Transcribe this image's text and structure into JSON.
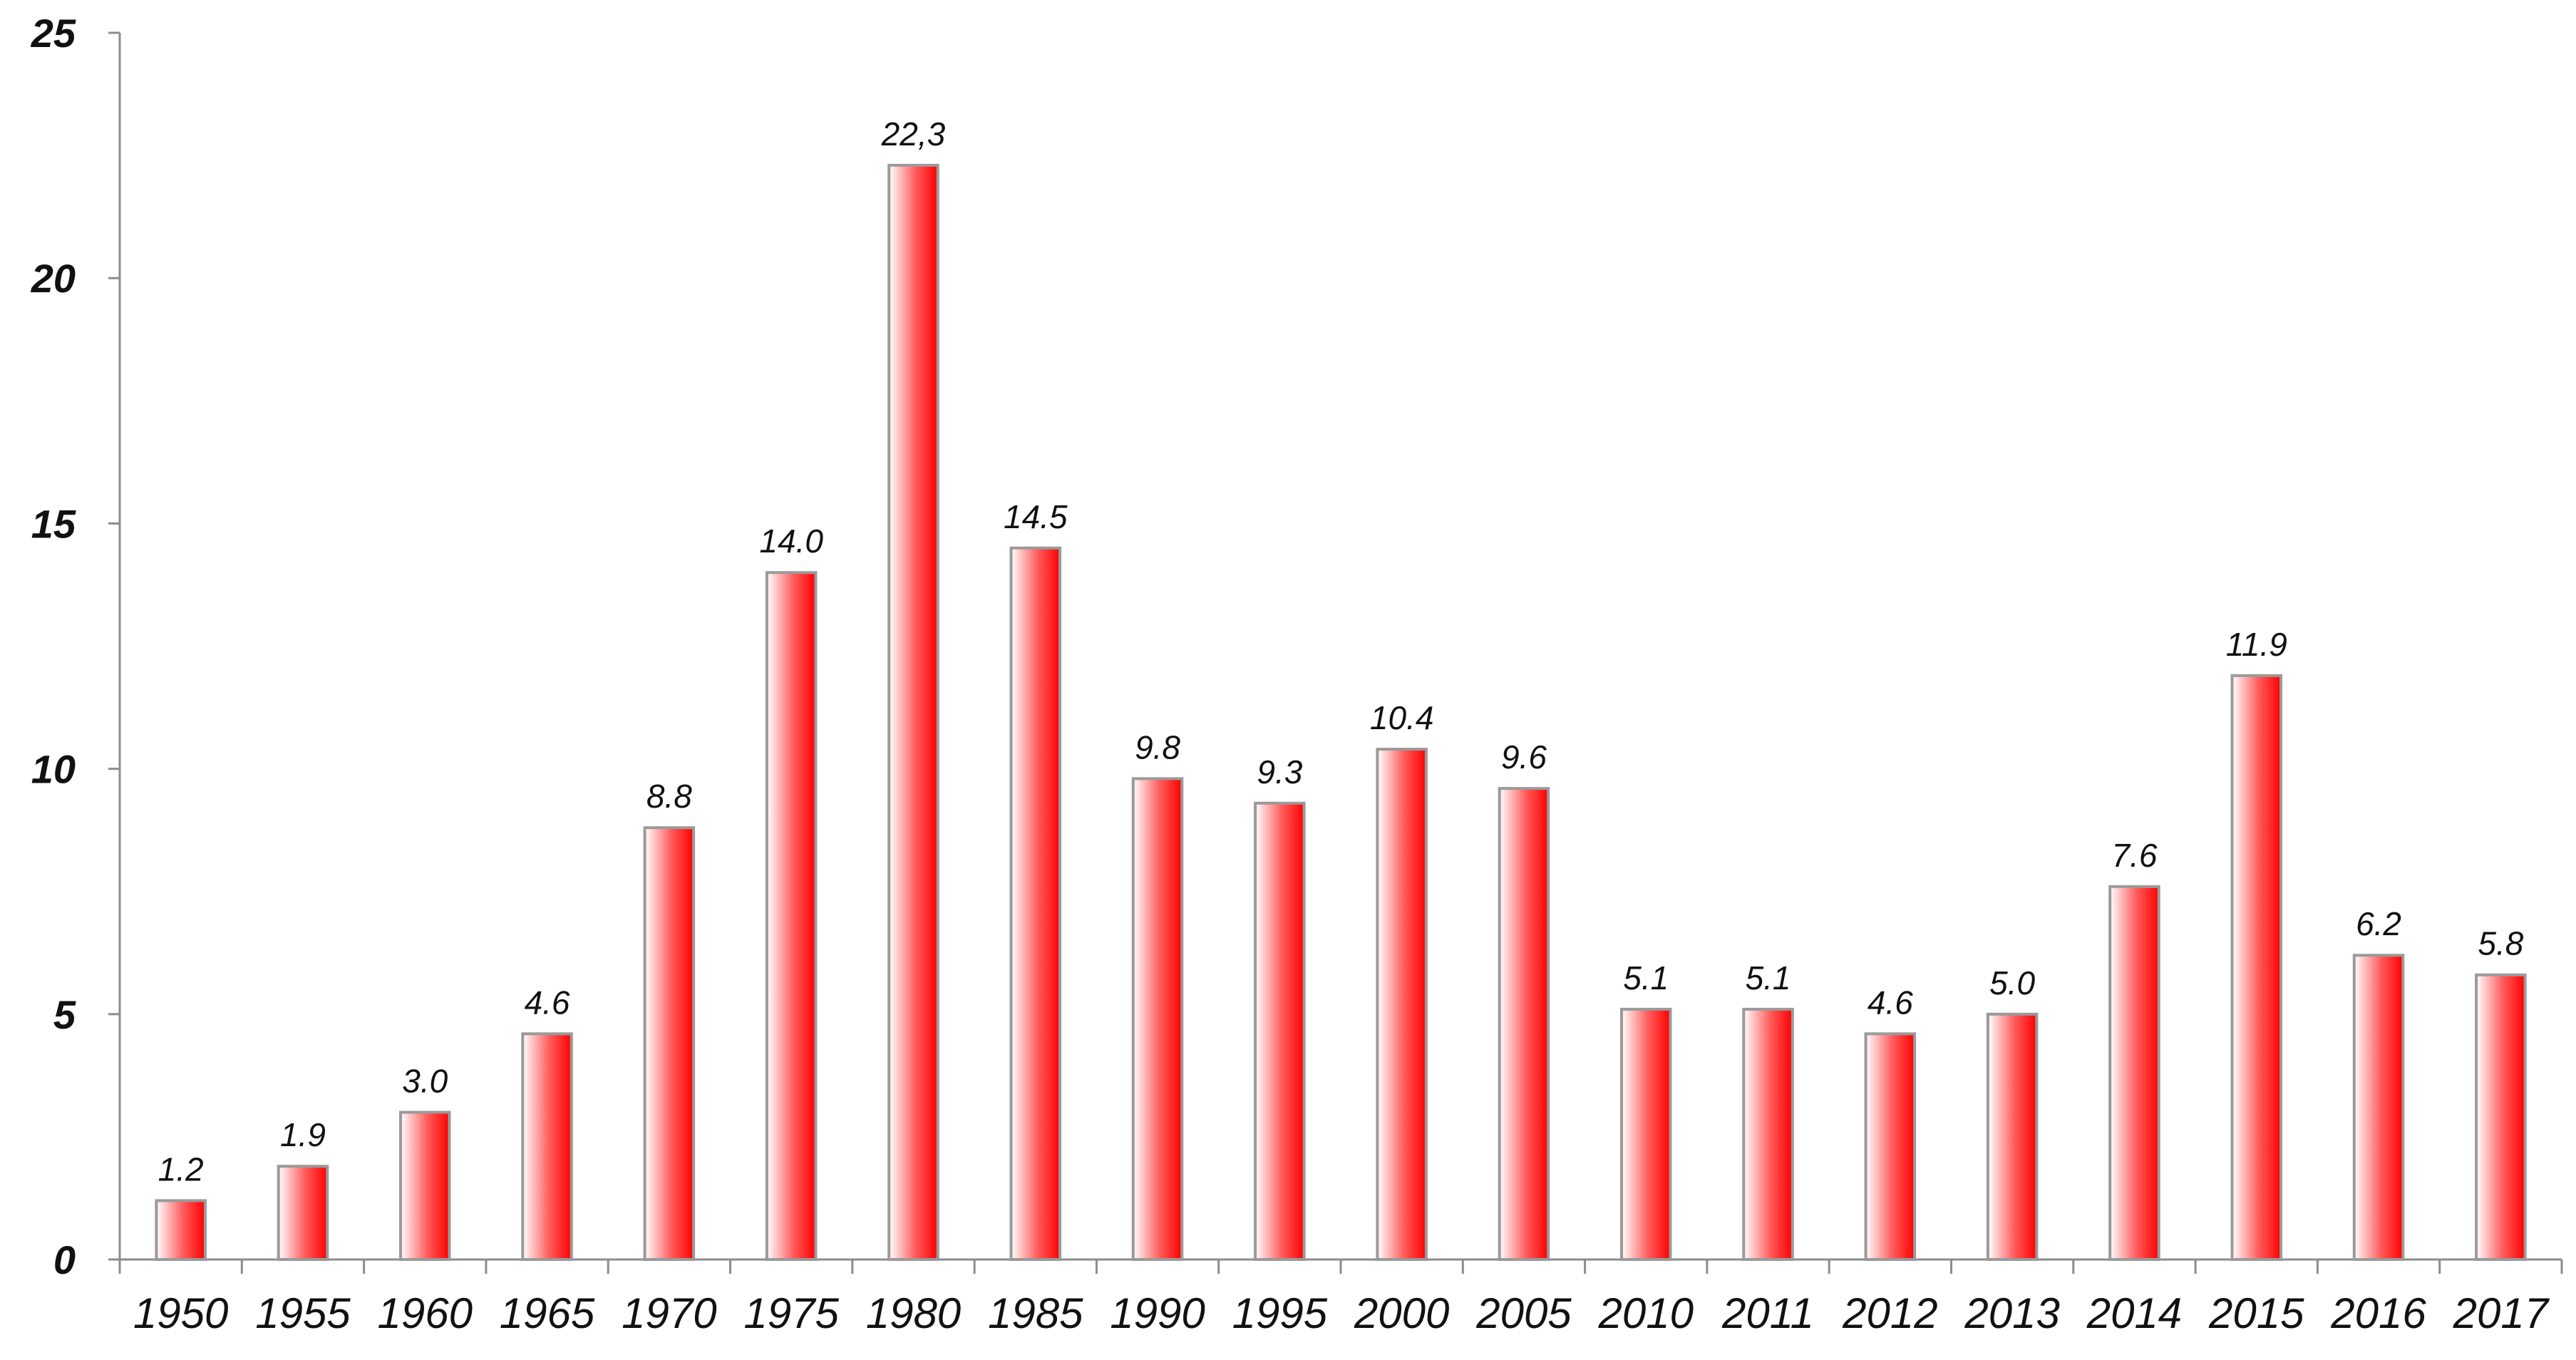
{
  "chart_data": {
    "type": "bar",
    "categories": [
      "1950",
      "1955",
      "1960",
      "1965",
      "1970",
      "1975",
      "1980",
      "1985",
      "1990",
      "1995",
      "2000",
      "2005",
      "2010",
      "2011",
      "2012",
      "2013",
      "2014",
      "2015",
      "2016",
      "2017"
    ],
    "values": [
      1.2,
      1.9,
      3.0,
      4.6,
      8.8,
      14.0,
      22.3,
      14.5,
      9.8,
      9.3,
      10.4,
      9.6,
      5.1,
      5.1,
      4.6,
      5.0,
      7.6,
      11.9,
      6.2,
      5.8
    ],
    "data_labels": [
      "1.2",
      "1.9",
      "3.0",
      "4.6",
      "8.8",
      "14.0",
      "22,3",
      "14.5",
      "9.8",
      "9.3",
      "10.4",
      "9.6",
      "5.1",
      "5.1",
      "4.6",
      "5.0",
      "7.6",
      "11.9",
      "6.2",
      "5.8"
    ],
    "yticks": [
      "0",
      "5",
      "10",
      "15",
      "20",
      "25"
    ],
    "ylim": [
      0,
      25
    ],
    "grid": false,
    "legend": "none",
    "colors": {
      "bar_dark": "#ff0000",
      "bar_light": "#ffffff",
      "bar_border": "#9a9a9a",
      "axis": "#8c8c8c"
    }
  }
}
